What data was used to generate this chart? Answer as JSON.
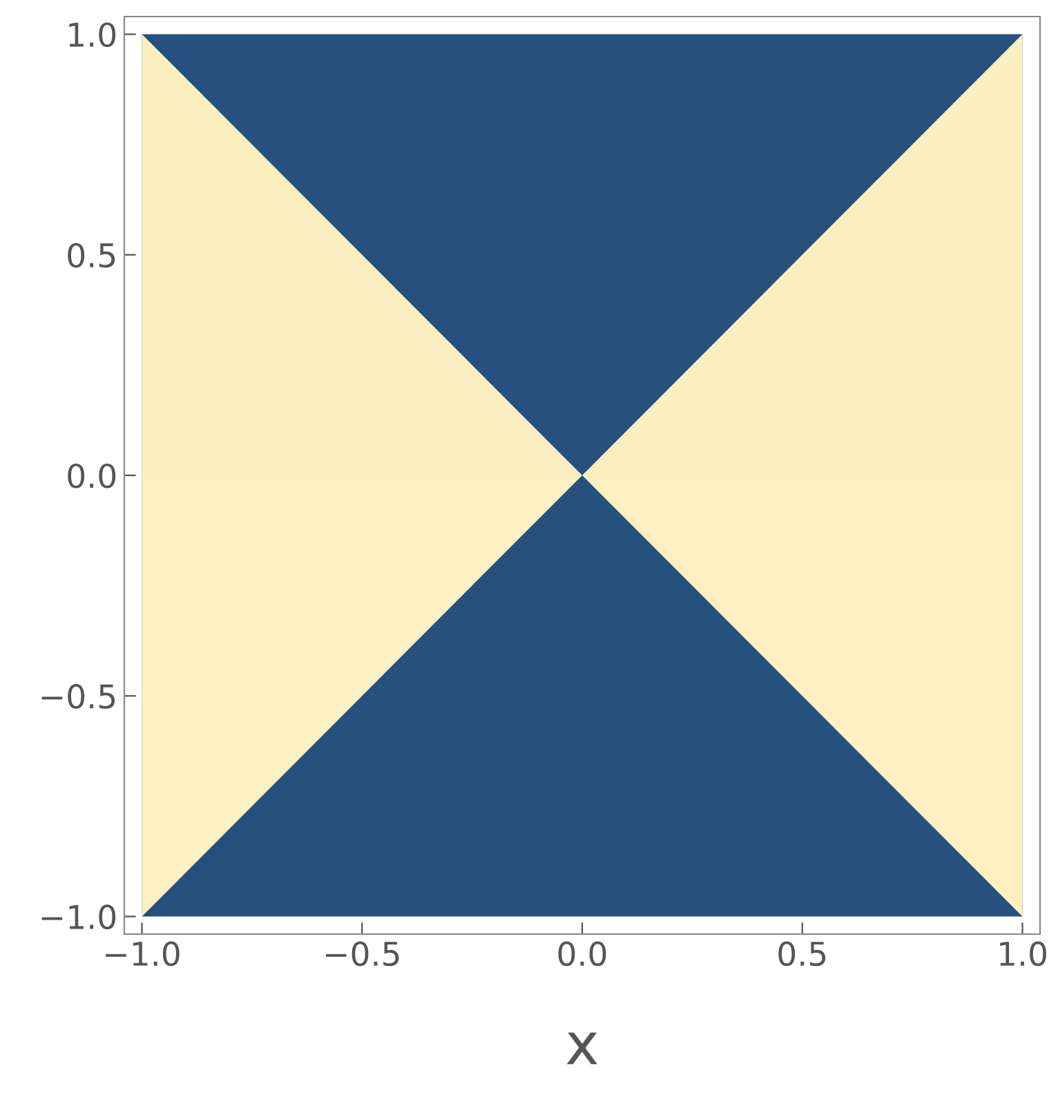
{
  "chart_data": {
    "type": "area",
    "xlabel": "x",
    "series": [
      {
        "color": "#27507f",
        "x": [
          -1,
          1
        ],
        "values": [
          1,
          1
        ]
      },
      {
        "color": "#fbefc0",
        "x": [
          -1,
          0
        ],
        "values": [
          1,
          0
        ]
      },
      {
        "color": "#fbefc0",
        "x": [
          0,
          1
        ],
        "values": [
          0,
          1
        ]
      },
      {
        "color": "#27507f",
        "x": [
          -1,
          1
        ],
        "values": [
          -1,
          -1
        ]
      },
      {
        "color": "#fcefc0",
        "x": [
          -1,
          0
        ],
        "values": [
          -1,
          0
        ]
      },
      {
        "color": "#fcefc0",
        "x": [
          0,
          1
        ],
        "values": [
          0,
          -1
        ]
      }
    ],
    "xlim": [
      -1.04,
      1.04
    ],
    "ylim": [
      -1.04,
      1.04
    ],
    "xticks": [
      {
        "value": -1,
        "label": "−1.0"
      },
      {
        "value": -0.5,
        "label": "−0.5"
      },
      {
        "value": 0,
        "label": "0.0"
      },
      {
        "value": 0.5,
        "label": "0.5"
      },
      {
        "value": 1,
        "label": "1.0"
      }
    ],
    "yticks": [
      {
        "value": -1,
        "label": "−1.0"
      },
      {
        "value": -0.5,
        "label": "−0.5"
      },
      {
        "value": 0,
        "label": "0.0"
      },
      {
        "value": 0.5,
        "label": "0.5"
      },
      {
        "value": 1,
        "label": "1.0"
      }
    ],
    "grid": false
  }
}
